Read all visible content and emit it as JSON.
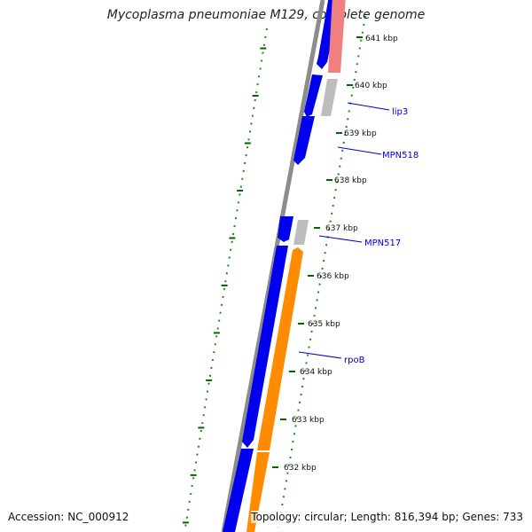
{
  "title": "Mycoplasma pneumoniae M129, complete genome",
  "accession": "Accession: NC_000912",
  "summary": "Topology: circular; Length: 816,394 bp; Genes: 733",
  "colors": {
    "backbone": "#8c8c8c",
    "forward_gene": "#0000ee",
    "reverse_gene": "#ff8c00",
    "rrna": "#f08080",
    "other_gene": "#bdbdbd",
    "label": "#0000cc",
    "tick": "#006600",
    "gc_dots": "#008800"
  },
  "ticks": [
    "641 kbp",
    "640 kbp",
    "639 kbp",
    "638 kbp",
    "637 kbp",
    "636 kbp",
    "635 kbp",
    "634 kbp",
    "633 kbp",
    "632 kbp"
  ],
  "gene_labels": [
    "lip3",
    "MPN518",
    "MPN517",
    "rpoB"
  ]
}
